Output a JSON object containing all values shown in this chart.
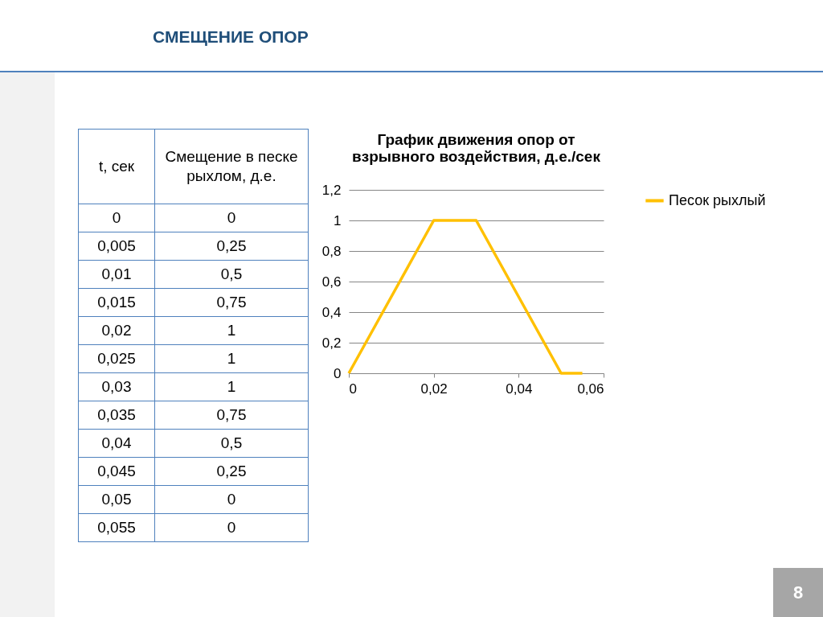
{
  "chart_data": [
    {
      "type": "heatmap",
      "ylabel": "t, сек",
      "categories": [
        "Смещение в песке рыхлом, д.е."
      ],
      "y_categories": [
        "0",
        "0,005",
        "0,01",
        "0,015",
        "0,02",
        "0,025",
        "0,03",
        "0,035",
        "0,04",
        "0,045",
        "0,05",
        "0,055"
      ],
      "cells": [
        [
          0
        ],
        [
          0.25
        ],
        [
          0.5
        ],
        [
          0.75
        ],
        [
          1
        ],
        [
          1
        ],
        [
          1
        ],
        [
          0.75
        ],
        [
          0.5
        ],
        [
          0.25
        ],
        [
          0
        ],
        [
          0
        ]
      ],
      "cell_labels": [
        [
          "0"
        ],
        [
          "0,25"
        ],
        [
          "0,5"
        ],
        [
          "0,75"
        ],
        [
          "1"
        ],
        [
          "1"
        ],
        [
          "1"
        ],
        [
          "0,75"
        ],
        [
          "0,5"
        ],
        [
          "0,25"
        ],
        [
          "0"
        ],
        [
          "0"
        ]
      ]
    },
    {
      "type": "line",
      "title": "График движения опор от взрывного воздействия, д.е./сек",
      "annotations": [
        "СМЕЩЕНИЕ ОПОР",
        "8"
      ],
      "x": [
        0,
        0.005,
        0.01,
        0.015,
        0.02,
        0.025,
        0.03,
        0.035,
        0.04,
        0.045,
        0.05,
        0.055
      ],
      "series": [
        {
          "name": "Песок рыхлый",
          "color": "#ffc000",
          "values": [
            0,
            0.25,
            0.5,
            0.75,
            1,
            1,
            1,
            0.75,
            0.5,
            0.25,
            0,
            0
          ]
        }
      ],
      "xlim": [
        0,
        0.06
      ],
      "xticks": [
        0,
        {
          "value": 0.02,
          "label": "0,02"
        },
        {
          "value": 0.04,
          "label": "0,04"
        },
        {
          "value": 0.06,
          "label": "0,06"
        }
      ],
      "ylim": [
        0,
        1.2
      ],
      "yticks": [
        0,
        {
          "value": 0.2,
          "label": "0,2"
        },
        {
          "value": 0.4,
          "label": "0,4"
        },
        {
          "value": 0.6,
          "label": "0,6"
        },
        {
          "value": 0.8,
          "label": "0,8"
        },
        1,
        {
          "value": 1.2,
          "label": "1,2"
        }
      ],
      "grid": "y",
      "legend": "right",
      "marker": "none",
      "line_style": "solid"
    }
  ]
}
